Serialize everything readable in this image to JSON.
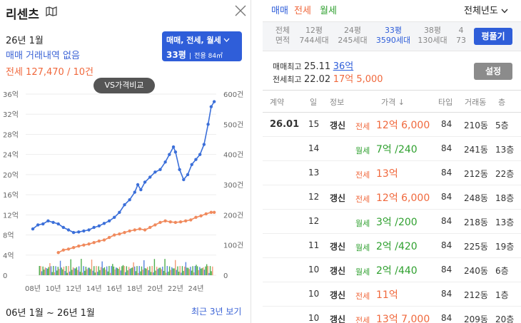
{
  "left": {
    "title": "리센츠",
    "date": "26년 1월",
    "no_deal": "매매 거래내역 없음",
    "jeonse_line": "전세 127,470 / 10건",
    "filter_line1": "매매, 전세, 월세",
    "filter_size": "33평",
    "filter_area": "전용 84㎡",
    "vs_button": "VS가격비교",
    "period": "06년 1월 ~ 26년 1월",
    "recent": "최근 3년 보기"
  },
  "chart_data": {
    "type": "line",
    "y_left_ticks": [
      "0",
      "4억",
      "8억",
      "12억",
      "16억",
      "20억",
      "24억",
      "28억",
      "32억",
      "36억"
    ],
    "y_right_ticks": [
      "0",
      "100건",
      "200건",
      "300건",
      "400건",
      "500건",
      "600건"
    ],
    "x_ticks": [
      "08년",
      "10년",
      "12년",
      "14년",
      "16년",
      "18년",
      "20년",
      "22년",
      "24년"
    ],
    "ylim_left": [
      0,
      36
    ],
    "ylim_right": [
      0,
      600
    ],
    "series": [
      {
        "color": "#3b6fd9",
        "x": [
          2008.0,
          2008.5,
          2009.0,
          2009.5,
          2010.0,
          2010.5,
          2011.0,
          2011.5,
          2012.0,
          2012.5,
          2013.0,
          2013.5,
          2014.0,
          2014.5,
          2015.0,
          2015.5,
          2016.0,
          2016.5,
          2017.0,
          2017.5,
          2018.0,
          2018.3,
          2018.6,
          2019.0,
          2019.5,
          2020.0,
          2020.5,
          2021.0,
          2021.4,
          2021.8,
          2022.0,
          2022.4,
          2022.8,
          2023.2,
          2023.6,
          2024.0,
          2024.4,
          2024.8,
          2025.2,
          2025.5,
          2025.8
        ],
        "y": [
          9.2,
          10.0,
          10.2,
          10.8,
          10.5,
          10.2,
          9.5,
          9.0,
          8.5,
          8.6,
          8.8,
          9.0,
          9.5,
          9.8,
          10.3,
          10.8,
          11.5,
          12.5,
          14.0,
          15.0,
          16.5,
          18.0,
          17.0,
          18.5,
          19.5,
          20.5,
          21.0,
          22.5,
          24.0,
          25.5,
          24.5,
          21.0,
          19.0,
          20.0,
          22.0,
          23.0,
          24.0,
          26.0,
          30.0,
          33.5,
          34.5
        ]
      },
      {
        "color": "#f08a5d",
        "x": [
          2010.5,
          2011.0,
          2011.5,
          2012.0,
          2012.5,
          2013.0,
          2013.5,
          2014.0,
          2014.5,
          2015.0,
          2015.5,
          2016.0,
          2016.5,
          2017.0,
          2017.5,
          2018.0,
          2018.5,
          2019.0,
          2019.5,
          2020.0,
          2020.5,
          2021.0,
          2021.5,
          2022.0,
          2022.5,
          2023.0,
          2023.5,
          2024.0,
          2024.5,
          2025.0,
          2025.5,
          2025.8
        ],
        "y": [
          4.5,
          5.0,
          5.2,
          5.5,
          5.8,
          6.0,
          6.2,
          6.5,
          6.8,
          7.0,
          7.5,
          8.0,
          8.2,
          8.5,
          8.8,
          9.0,
          9.2,
          9.0,
          9.5,
          10.0,
          10.5,
          10.8,
          10.6,
          10.5,
          10.6,
          10.8,
          11.0,
          11.5,
          11.8,
          12.2,
          12.5,
          12.5
        ]
      }
    ]
  },
  "right": {
    "tabs": [
      "매매",
      "전세",
      "월세"
    ],
    "year_select": "전체년도",
    "sizes": [
      {
        "label": "전체",
        "sub": "면적"
      },
      {
        "label": "12평",
        "sub": "744세대"
      },
      {
        "label": "24평",
        "sub": "245세대"
      },
      {
        "label": "33평",
        "sub": "3590세대"
      },
      {
        "label": "38평",
        "sub": "130세대"
      },
      {
        "label": "4",
        "sub": "73"
      }
    ],
    "pyeong_button": "평풀기",
    "max_sale_label": "매매최고",
    "max_sale_date": "25.11",
    "max_sale_value": "36억",
    "max_jeonse_label": "전세최고",
    "max_jeonse_date": "22.02",
    "max_jeonse_value": "17억 5,000",
    "setting_button": "설정",
    "headers": [
      "계약",
      "일",
      "정보",
      "가격 ↓",
      "타입",
      "거래동",
      "층"
    ],
    "rows": [
      {
        "ym": "26.01",
        "day": "15",
        "info": "갱신",
        "kind": "전세",
        "price": "12억 6,000",
        "type": "84",
        "dong": "210동",
        "floor": "5층"
      },
      {
        "ym": "",
        "day": "14",
        "info": "",
        "kind": "월세",
        "price": "7억 /240",
        "type": "84",
        "dong": "241동",
        "floor": "13층"
      },
      {
        "ym": "",
        "day": "13",
        "info": "",
        "kind": "전세",
        "price": "13억",
        "type": "84",
        "dong": "212동",
        "floor": "22층"
      },
      {
        "ym": "",
        "day": "12",
        "info": "갱신",
        "kind": "전세",
        "price": "12억 6,000",
        "type": "84",
        "dong": "248동",
        "floor": "18층"
      },
      {
        "ym": "",
        "day": "12",
        "info": "",
        "kind": "월세",
        "price": "3억 /200",
        "type": "84",
        "dong": "218동",
        "floor": "13층"
      },
      {
        "ym": "",
        "day": "11",
        "info": "갱신",
        "kind": "월세",
        "price": "2억 /420",
        "type": "84",
        "dong": "225동",
        "floor": "19층"
      },
      {
        "ym": "",
        "day": "10",
        "info": "갱신",
        "kind": "월세",
        "price": "2억 /440",
        "type": "84",
        "dong": "240동",
        "floor": "6층"
      },
      {
        "ym": "",
        "day": "10",
        "info": "갱신",
        "kind": "전세",
        "price": "11억",
        "type": "84",
        "dong": "212동",
        "floor": "1층"
      },
      {
        "ym": "",
        "day": "10",
        "info": "갱신",
        "kind": "전세",
        "price": "13억 7,000",
        "type": "84",
        "dong": "209동",
        "floor": "20층"
      }
    ],
    "colors": {
      "sale": "#2f5ed9",
      "jeonse": "#f0683c",
      "monthly": "#2fa02f"
    }
  }
}
